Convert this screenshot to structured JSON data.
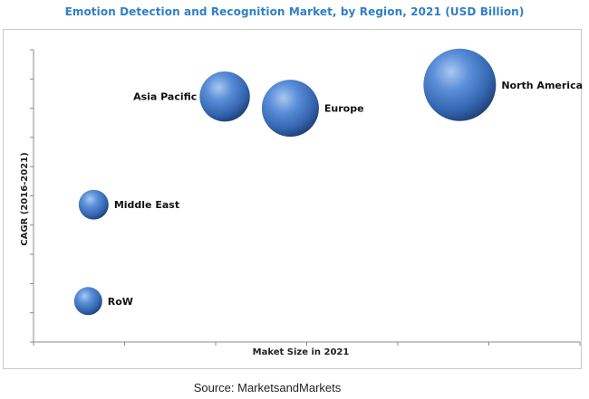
{
  "chart_data": {
    "type": "bubble",
    "title": "Emotion Detection and Recognition Market, by Region, 2021 (USD Billion)",
    "xlabel": "Maket Size in 2021",
    "ylabel": "CAGR (2016-2021)",
    "xlim": [
      0,
      100
    ],
    "ylim": [
      0,
      100
    ],
    "axis_ticks_labeled": false,
    "grid": false,
    "legend": "none",
    "bubble_color": "#3d74c4",
    "points": [
      {
        "label": "North America",
        "x": 78,
        "y": 88,
        "size": 100
      },
      {
        "label": "Asia Pacific",
        "x": 35,
        "y": 84,
        "size": 48
      },
      {
        "label": "Europe",
        "x": 47,
        "y": 80,
        "size": 62
      },
      {
        "label": "Middle East",
        "x": 11,
        "y": 47,
        "size": 17
      },
      {
        "label": "RoW",
        "x": 10,
        "y": 14,
        "size": 15
      }
    ]
  },
  "source": "Source: MarketsandMarkets"
}
